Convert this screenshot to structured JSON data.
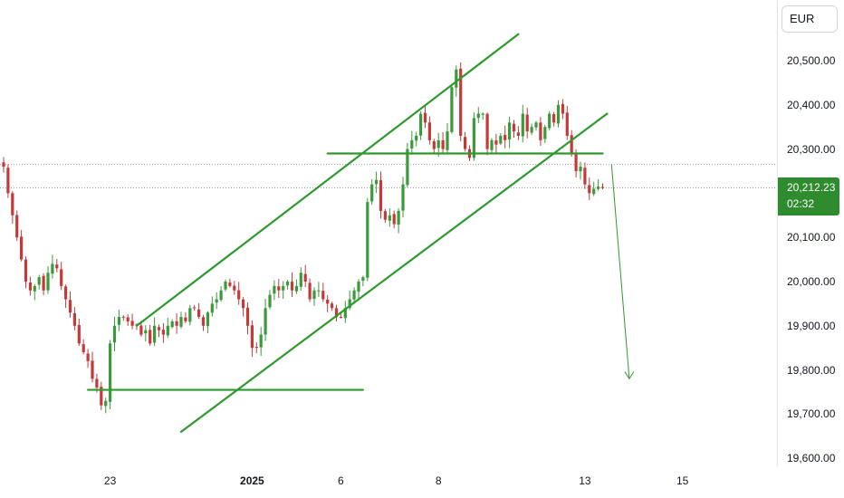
{
  "currency": "EUR",
  "last_price": "20,212.23",
  "countdown": "02:32",
  "colors": {
    "up": "#3b9a3b",
    "down": "#c43a3a",
    "trend": "#2e9a2e",
    "badge": "#2e8b2e"
  },
  "chart_data": {
    "type": "candlestick",
    "ylim": [
      19580,
      20600
    ],
    "y_ticks": [
      "20,500.00",
      "20,400.00",
      "20,300.00",
      "20,200.00",
      "20,100.00",
      "20,000.00",
      "19,900.00",
      "19,800.00",
      "19,700.00",
      "19,600.00"
    ],
    "y_tick_values": [
      20500,
      20400,
      20300,
      20200,
      20100,
      20000,
      19900,
      19800,
      19700,
      19600
    ],
    "x_ticks": [
      {
        "label": "23",
        "index": 24,
        "bold": false
      },
      {
        "label": "2025",
        "index": 56,
        "bold": true
      },
      {
        "label": "6",
        "index": 76,
        "bold": false
      },
      {
        "label": "8",
        "index": 98,
        "bold": false
      },
      {
        "label": "13",
        "index": 131,
        "bold": false
      },
      {
        "label": "15",
        "index": 153,
        "bold": false
      }
    ],
    "reference_prices": [
      20265,
      20212.23
    ],
    "close": [
      20260,
      20200,
      20150,
      20100,
      20050,
      20000,
      19980,
      19990,
      20010,
      19980,
      20020,
      20040,
      20030,
      19990,
      19960,
      19930,
      19900,
      19860,
      19840,
      19820,
      19780,
      19760,
      19720,
      19730,
      19860,
      19900,
      19920,
      19920,
      19910,
      19900,
      19900,
      19880,
      19890,
      19860,
      19900,
      19890,
      19880,
      19900,
      19910,
      19900,
      19920,
      19910,
      19940,
      19940,
      19920,
      19900,
      19930,
      19950,
      19960,
      19980,
      20000,
      19990,
      19980,
      19960,
      19940,
      19900,
      19850,
      19850,
      19880,
      19940,
      19970,
      19990,
      19980,
      19990,
      20000,
      19980,
      19990,
      20020,
      20000,
      19960,
      19980,
      19980,
      19960,
      19950,
      19940,
      19920,
      19920,
      19940,
      19960,
      19980,
      20000,
      20010,
      20180,
      20220,
      20230,
      20160,
      20140,
      20150,
      20130,
      20160,
      20220,
      20300,
      20320,
      20330,
      20380,
      20360,
      20320,
      20300,
      20320,
      20300,
      20340,
      20440,
      20480,
      20330,
      20300,
      20280,
      20370,
      20380,
      20380,
      20300,
      20320,
      20310,
      20330,
      20320,
      20360,
      20340,
      20330,
      20380,
      20340,
      20350,
      20360,
      20320,
      20350,
      20380,
      20360,
      20400,
      20380,
      20330,
      20290,
      20250,
      20260,
      20220,
      20200,
      20210,
      20215,
      20212
    ],
    "trendlines": [
      {
        "name": "channel-upper",
        "from": [
          30,
          19900
        ],
        "to": [
          116,
          20560
        ]
      },
      {
        "name": "channel-lower",
        "from": [
          40,
          19660
        ],
        "to": [
          136,
          20380
        ]
      },
      {
        "name": "resistance-line",
        "from": [
          73,
          20290
        ],
        "to": [
          135,
          20290
        ]
      },
      {
        "name": "support-line",
        "from": [
          19,
          19755
        ],
        "to": [
          81,
          19755
        ]
      }
    ],
    "projection": {
      "from": [
        137,
        20265
      ],
      "to": [
        141,
        19780
      ]
    }
  }
}
